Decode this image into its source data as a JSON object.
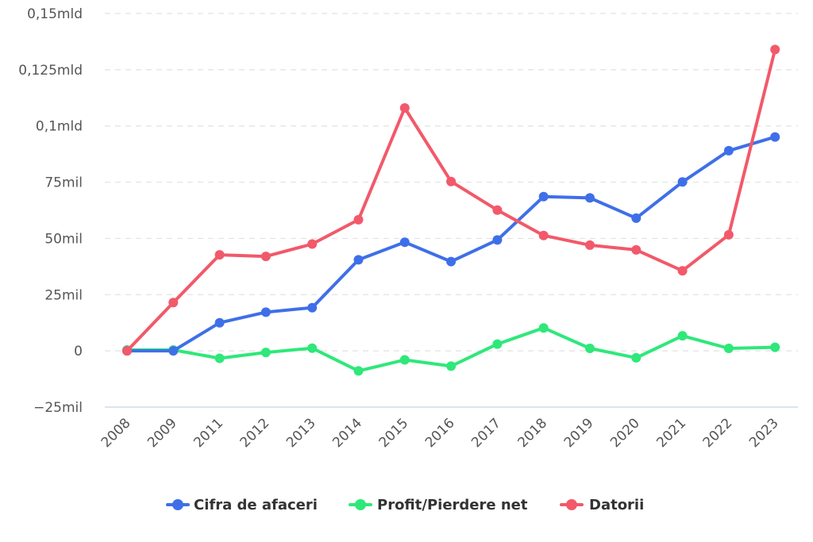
{
  "chart_data": {
    "type": "line",
    "categories": [
      "2008",
      "2009",
      "2011",
      "2012",
      "2013",
      "2014",
      "2015",
      "2016",
      "2017",
      "2018",
      "2019",
      "2020",
      "2021",
      "2022",
      "2023"
    ],
    "y_ticks": [
      {
        "value": -25000000,
        "label": "−25mil"
      },
      {
        "value": 0,
        "label": "0"
      },
      {
        "value": 25000000,
        "label": "25mil"
      },
      {
        "value": 50000000,
        "label": "50mil"
      },
      {
        "value": 75000000,
        "label": "75mil"
      },
      {
        "value": 100000000,
        "label": "0,1mld"
      },
      {
        "value": 125000000,
        "label": "0,125mld"
      },
      {
        "value": 150000000,
        "label": "0,15mld"
      }
    ],
    "ylim": [
      -25000000,
      150000000
    ],
    "grid": true,
    "legend_position": "bottom-center",
    "series": [
      {
        "name": "Cifra de afaceri",
        "color": "#3f6fe8",
        "values": [
          0,
          0,
          12500000,
          17200000,
          19200000,
          40500000,
          48300000,
          39700000,
          49300000,
          68600000,
          68000000,
          59000000,
          75100000,
          89000000,
          95100000
        ]
      },
      {
        "name": "Profit/Pierdere net",
        "color": "#2ee87a",
        "values": [
          400000,
          400000,
          -3300000,
          -700000,
          1200000,
          -8900000,
          -4000000,
          -6800000,
          3000000,
          10200000,
          1100000,
          -3100000,
          6700000,
          1100000,
          1600000
        ]
      },
      {
        "name": "Datorii",
        "color": "#f2596a",
        "values": [
          0,
          21500000,
          42700000,
          42000000,
          47500000,
          58300000,
          108000000,
          75300000,
          62600000,
          51300000,
          47000000,
          44900000,
          35600000,
          51600000,
          134000000
        ]
      }
    ]
  }
}
